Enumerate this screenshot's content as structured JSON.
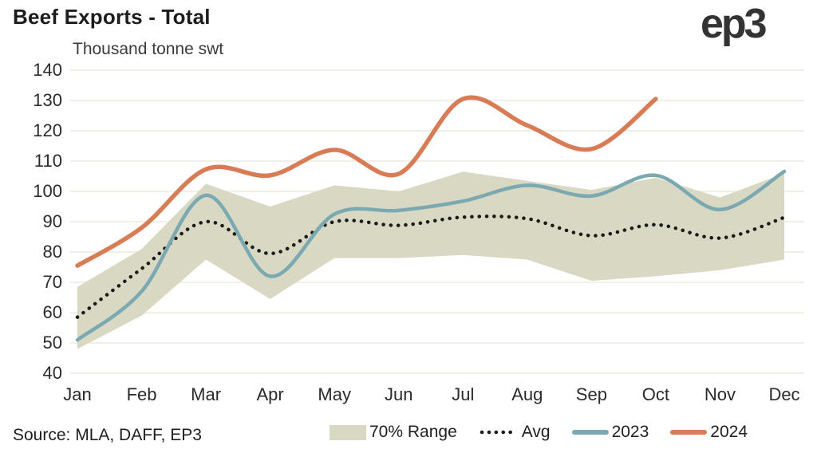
{
  "header": {
    "logo": "ep3"
  },
  "chart_data": {
    "type": "line",
    "title": "Beef Exports - Total",
    "subtitle": "Thousand tonne swt",
    "source": "Source: MLA, DAFF, EP3",
    "categories": [
      "Jan",
      "Feb",
      "Mar",
      "Apr",
      "May",
      "Jun",
      "Jul",
      "Aug",
      "Sep",
      "Oct",
      "Nov",
      "Dec"
    ],
    "ylim": [
      40,
      140
    ],
    "yticks": [
      40,
      50,
      60,
      70,
      80,
      90,
      100,
      110,
      120,
      130,
      140
    ],
    "grid": "on",
    "grid_color": "#eeebdc",
    "legend_position": "bottom",
    "series": [
      {
        "name": "70% Range",
        "type": "band",
        "color": "#d9d8c3",
        "low": [
          48,
          59,
          77.5,
          64.5,
          78,
          78,
          79,
          77.5,
          70.5,
          72,
          74,
          77.5
        ],
        "high": [
          68.5,
          81,
          102.5,
          95,
          102,
          100,
          106.5,
          103.5,
          100.5,
          104.5,
          98,
          106
        ]
      },
      {
        "name": "Avg",
        "type": "dotted-line",
        "color": "#1a1a1a",
        "values": [
          58.5,
          74.5,
          90,
          79.5,
          90,
          88.8,
          91.5,
          91,
          85.4,
          89,
          84.6,
          91.4
        ]
      },
      {
        "name": "2023",
        "type": "line",
        "color": "#7aa9b2",
        "values": [
          51,
          67,
          98.7,
          72,
          92.5,
          93.7,
          96.8,
          102,
          98.5,
          105.3,
          94,
          106.6
        ]
      },
      {
        "name": "2024",
        "type": "line",
        "color": "#d87c55",
        "values": [
          75.5,
          88,
          107.3,
          105.3,
          113.7,
          105.8,
          130.5,
          121.8,
          114,
          130.5
        ]
      }
    ]
  }
}
